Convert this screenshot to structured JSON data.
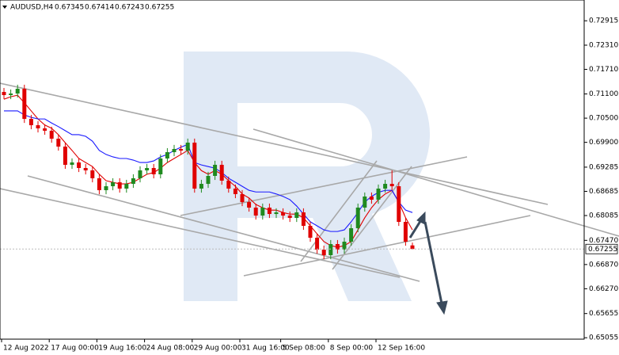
{
  "chart_data": {
    "type": "candlestick",
    "header": {
      "symbol": "AUDUSD,H4",
      "open": 0.67345,
      "high": 0.67414,
      "low": 0.67243,
      "close": 0.67255
    },
    "categories": [
      "12 Aug 2022",
      null,
      null,
      null,
      null,
      null,
      null,
      "17 Aug 00:00",
      null,
      null,
      null,
      null,
      null,
      null,
      "19 Aug 16:00",
      null,
      null,
      null,
      null,
      null,
      null,
      "24 Aug 08:00",
      null,
      null,
      null,
      null,
      null,
      null,
      "29 Aug 00:00",
      null,
      null,
      null,
      null,
      null,
      null,
      "31 Aug 16:00",
      null,
      null,
      null,
      null,
      null,
      "5 Sep 08:00",
      null,
      null,
      null,
      null,
      null,
      null,
      "8 Sep 00:00",
      null,
      null,
      null,
      null,
      null,
      null,
      "12 Sep 16:00",
      null,
      null,
      null,
      null,
      null
    ],
    "open": [
      0.7115,
      0.71072,
      0.71111,
      0.71229,
      0.70482,
      0.70325,
      0.70247,
      0.70188,
      0.69991,
      0.69795,
      0.69343,
      0.69402,
      0.69264,
      0.69205,
      0.69009,
      0.68714,
      0.68812,
      0.6891,
      0.68753,
      0.68871,
      0.69009,
      0.69205,
      0.69264,
      0.69107,
      0.695,
      0.69657,
      0.69736,
      0.69696,
      0.69893,
      0.68753,
      0.68871,
      0.69068,
      0.69343,
      0.6895,
      0.68753,
      0.68616,
      0.68419,
      0.68282,
      0.68085,
      0.68282,
      0.68124,
      0.68164,
      0.68085,
      0.68026,
      0.68164,
      0.6783,
      0.67535,
      0.6724,
      0.67103,
      0.67378,
      0.6724,
      0.67437,
      0.67771,
      0.68282,
      0.68557,
      0.68478,
      0.68753,
      0.68871,
      0.68812,
      0.67928,
      0.67345
    ],
    "high": [
      0.7125,
      0.71211,
      0.71329,
      0.71329,
      0.70582,
      0.70425,
      0.70347,
      0.70288,
      0.70091,
      0.69895,
      0.69502,
      0.69502,
      0.69364,
      0.69305,
      0.69109,
      0.68912,
      0.6901,
      0.6901,
      0.68971,
      0.69109,
      0.69305,
      0.69364,
      0.69364,
      0.696,
      0.69757,
      0.69836,
      0.69836,
      0.69993,
      0.69993,
      0.68971,
      0.69168,
      0.69443,
      0.69443,
      0.6905,
      0.68853,
      0.68716,
      0.68519,
      0.68382,
      0.68382,
      0.68382,
      0.68264,
      0.68264,
      0.68185,
      0.68264,
      0.68264,
      0.6793,
      0.67635,
      0.6734,
      0.67478,
      0.67478,
      0.67537,
      0.67871,
      0.68382,
      0.68657,
      0.68657,
      0.68853,
      0.68971,
      0.69205,
      0.68912,
      0.68028,
      0.67414
    ],
    "low": [
      0.70972,
      0.70972,
      0.71011,
      0.70382,
      0.70225,
      0.70147,
      0.70088,
      0.69891,
      0.69695,
      0.69243,
      0.69243,
      0.69164,
      0.69105,
      0.68909,
      0.68614,
      0.68614,
      0.68712,
      0.68653,
      0.68653,
      0.68771,
      0.68909,
      0.69105,
      0.69007,
      0.69007,
      0.694,
      0.69557,
      0.69596,
      0.69596,
      0.68653,
      0.68653,
      0.68771,
      0.68968,
      0.6885,
      0.68653,
      0.68516,
      0.68319,
      0.68182,
      0.67985,
      0.67985,
      0.68024,
      0.68024,
      0.67985,
      0.67926,
      0.67926,
      0.6773,
      0.67435,
      0.6714,
      0.67003,
      0.67003,
      0.6714,
      0.6714,
      0.67337,
      0.67671,
      0.68182,
      0.68378,
      0.68378,
      0.68653,
      0.68712,
      0.67828,
      0.67337,
      0.67243
    ],
    "close": [
      0.71072,
      0.71111,
      0.71229,
      0.70482,
      0.70325,
      0.70247,
      0.70188,
      0.69991,
      0.69795,
      0.69343,
      0.69402,
      0.69264,
      0.69205,
      0.69009,
      0.68714,
      0.68812,
      0.6891,
      0.68753,
      0.68871,
      0.69009,
      0.69205,
      0.69264,
      0.69107,
      0.695,
      0.69657,
      0.69736,
      0.69696,
      0.69893,
      0.68753,
      0.68871,
      0.69068,
      0.69343,
      0.6895,
      0.68753,
      0.68616,
      0.68419,
      0.68282,
      0.68085,
      0.68282,
      0.68124,
      0.68164,
      0.68085,
      0.68026,
      0.68164,
      0.6783,
      0.67535,
      0.6724,
      0.67103,
      0.67378,
      0.6724,
      0.67437,
      0.67771,
      0.68282,
      0.68557,
      0.68478,
      0.68753,
      0.68871,
      0.68812,
      0.67928,
      0.67437,
      0.67255
    ],
    "up_color": "#1f8a1f",
    "down_color": "#e00000",
    "lines": [
      {
        "color": "#e00000",
        "values": [
          0.7097,
          0.7103,
          0.7107,
          0.7088,
          0.7068,
          0.7048,
          0.7033,
          0.7025,
          0.7009,
          0.6989,
          0.697,
          0.695,
          0.694,
          0.693,
          0.6911,
          0.6895,
          0.6891,
          0.6887,
          0.6887,
          0.6891,
          0.6901,
          0.6911,
          0.6915,
          0.6926,
          0.694,
          0.695,
          0.696,
          0.697,
          0.694,
          0.692,
          0.6911,
          0.692,
          0.6911,
          0.6895,
          0.6881,
          0.6862,
          0.6852,
          0.6836,
          0.6828,
          0.6822,
          0.6822,
          0.6816,
          0.6812,
          0.6812,
          0.6803,
          0.6783,
          0.6763,
          0.6744,
          0.6734,
          0.673,
          0.6734,
          0.6744,
          0.6773,
          0.6803,
          0.6828,
          0.6848,
          0.6862,
          0.6871,
          0.6842,
          0.6803,
          0.6773
        ]
      },
      {
        "color": "#1a1aff",
        "values": [
          0.7068,
          0.7068,
          0.7068,
          0.7058,
          0.7052,
          0.7048,
          0.7048,
          0.7038,
          0.7029,
          0.7019,
          0.7009,
          0.7009,
          0.7005,
          0.6993,
          0.697,
          0.696,
          0.6954,
          0.695,
          0.695,
          0.6946,
          0.694,
          0.694,
          0.6944,
          0.6954,
          0.696,
          0.697,
          0.6978,
          0.6985,
          0.694,
          0.6934,
          0.693,
          0.6926,
          0.6915,
          0.6901,
          0.6891,
          0.6881,
          0.6871,
          0.6867,
          0.6867,
          0.6867,
          0.6862,
          0.6856,
          0.6848,
          0.6832,
          0.6812,
          0.6793,
          0.6783,
          0.6773,
          0.6769,
          0.6769,
          0.6773,
          0.6793,
          0.6816,
          0.6842,
          0.6856,
          0.6866,
          0.6871,
          0.6871,
          0.6842,
          0.6822,
          0.6816
        ]
      }
    ],
    "current_price": 0.67255,
    "ylim": [
      0.7343,
      0.6502
    ],
    "yticks": [
      0.72915,
      {
        "value": 0.7231,
        "label": "0.72310"
      },
      {
        "value": 0.7171,
        "label": "0.71710"
      },
      {
        "value": 0.711,
        "label": "0.71100"
      },
      {
        "value": 0.705,
        "label": "0.70500"
      },
      {
        "value": 0.699,
        "label": "0.69900"
      },
      0.69285,
      0.68685,
      0.68085,
      {
        "value": 0.6747,
        "label": "0.67470"
      },
      {
        "value": 0.6687,
        "label": "0.66870"
      },
      {
        "value": 0.6627,
        "label": "0.66270"
      },
      0.65655,
      0.65055
    ],
    "grid": false
  }
}
